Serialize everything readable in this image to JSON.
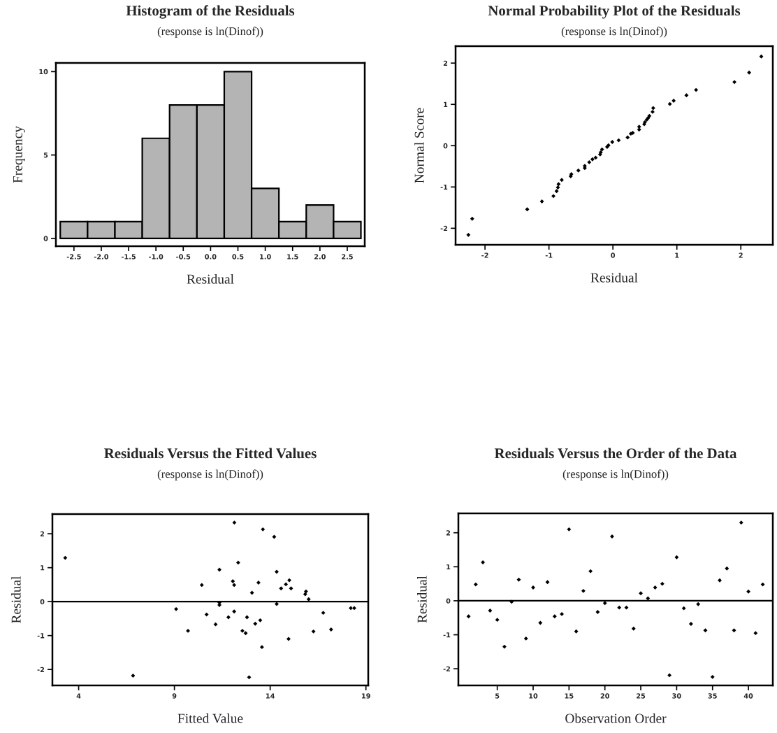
{
  "chart_data": [
    {
      "type": "histogram",
      "title": "Histogram of the Residuals",
      "subtitle": "(response is ln(Dinof))",
      "xlabel": "Residual",
      "ylabel": "Frequency",
      "bins": [
        -2.75,
        -2.25,
        -1.75,
        -1.25,
        -0.75,
        -0.25,
        0.25,
        0.75,
        1.25,
        1.75,
        2.25,
        2.75
      ],
      "values": [
        1,
        1,
        1,
        6,
        8,
        8,
        10,
        3,
        1,
        2,
        1
      ],
      "color": "#b4b4b4",
      "xlim": [
        -2.83,
        2.82
      ],
      "ylim": [
        -0.47,
        10.52
      ],
      "xticks": [
        -2.5,
        {
          "value": -2.0,
          "label": "-2.0"
        },
        -1.5,
        {
          "value": -1.0,
          "label": "-1.0"
        },
        -0.5,
        {
          "value": 0.0,
          "label": "0.0"
        },
        0.5,
        {
          "value": 1.0,
          "label": "1.0"
        },
        1.5,
        {
          "value": 2.0,
          "label": "2.0"
        },
        2.5
      ],
      "yticks": [
        0,
        5,
        10
      ]
    },
    {
      "type": "scatter",
      "title": "Normal Probability Plot of the Residuals",
      "subtitle": "(response is ln(Dinof))",
      "xlabel": "Residual",
      "ylabel": "Normal Score",
      "marker": "diamond",
      "series": [
        {
          "color": "#000000",
          "x": [
            -2.26,
            -2.2,
            -1.34,
            -1.11,
            -0.93,
            -0.88,
            -0.86,
            -0.85,
            -0.8,
            -0.66,
            -0.65,
            -0.54,
            -0.44,
            -0.44,
            -0.37,
            -0.32,
            -0.27,
            -0.2,
            -0.19,
            -0.17,
            -0.09,
            -0.07,
            -0.01,
            0.09,
            0.23,
            0.28,
            0.31,
            0.41,
            0.41,
            0.49,
            0.5,
            0.53,
            0.55,
            0.57,
            0.62,
            0.63,
            0.89,
            0.95,
            1.15,
            1.3,
            1.9,
            2.13,
            2.32
          ],
          "values": [
            -2.16,
            -1.77,
            -1.54,
            -1.35,
            -1.22,
            -1.1,
            -1.01,
            -0.93,
            -0.83,
            -0.74,
            -0.69,
            -0.6,
            -0.54,
            -0.49,
            -0.4,
            -0.33,
            -0.29,
            -0.21,
            -0.16,
            -0.09,
            -0.03,
            0.01,
            0.09,
            0.13,
            0.2,
            0.29,
            0.31,
            0.39,
            0.46,
            0.52,
            0.57,
            0.63,
            0.67,
            0.72,
            0.82,
            0.91,
            1.01,
            1.09,
            1.22,
            1.35,
            1.54,
            1.77,
            2.16
          ]
        }
      ],
      "xlim": [
        -2.46,
        2.5
      ],
      "ylim": [
        -2.4,
        2.41
      ],
      "xticks": [
        -2,
        -1,
        0,
        1,
        2
      ],
      "yticks": [
        -2,
        -1,
        0,
        1,
        2
      ]
    },
    {
      "type": "scatter",
      "title": "Residuals Versus the Fitted Values",
      "subtitle": "(response is ln(Dinof))",
      "xlabel": "Fitted Value",
      "ylabel": "Residual",
      "marker": "diamond",
      "series": [
        {
          "color": "#000000",
          "x": [
            3.3,
            12.13,
            13.62,
            14.21,
            12.33,
            11.35,
            14.34,
            12.05,
            12.12,
            10.43,
            13.39,
            15.0,
            14.82,
            14.57,
            15.09,
            13.05,
            15.87,
            15.83,
            16.01,
            11.35,
            11.35,
            14.34,
            9.09,
            10.68,
            12.12,
            11.82,
            12.79,
            11.15,
            13.22,
            13.48,
            9.71,
            12.55,
            12.72,
            14.96,
            13.57,
            6.84,
            12.9,
            16.26,
            16.77,
            17.18,
            18.21,
            18.39
          ],
          "values": [
            1.29,
            2.33,
            2.13,
            1.91,
            1.15,
            0.94,
            0.88,
            0.6,
            0.49,
            0.49,
            0.56,
            0.63,
            0.51,
            0.39,
            0.39,
            0.26,
            0.3,
            0.22,
            0.07,
            -0.03,
            -0.1,
            -0.07,
            -0.22,
            -0.38,
            -0.29,
            -0.46,
            -0.46,
            -0.67,
            -0.65,
            -0.55,
            -0.86,
            -0.86,
            -0.93,
            -1.1,
            -1.34,
            -2.18,
            -2.23,
            -0.88,
            -0.33,
            -0.82,
            -0.19,
            -0.19
          ]
        }
      ],
      "xlim": [
        2.63,
        19.12
      ],
      "ylim": [
        -2.47,
        2.58
      ],
      "xticks": [
        4,
        9,
        14,
        19
      ],
      "yticks": [
        -2,
        -1,
        0,
        1,
        2
      ],
      "ref_lines": [
        {
          "axis": "y",
          "value": 0,
          "color": "#000000"
        }
      ]
    },
    {
      "type": "scatter",
      "title": "Residuals Versus the Order of the Data",
      "subtitle": "(response is ln(Dinof))",
      "xlabel": "Observation Order",
      "ylabel": "Residual",
      "marker": "diamond",
      "series": [
        {
          "color": "#000000",
          "x": [
            1,
            2,
            3,
            4,
            5,
            6,
            7,
            8,
            9,
            10,
            11,
            12,
            13,
            14,
            15,
            16,
            17,
            18,
            19,
            20,
            21,
            22,
            23,
            24,
            25,
            26,
            27,
            28,
            29,
            30,
            31,
            32,
            33,
            34,
            35,
            36,
            37,
            38,
            39,
            40,
            41,
            42
          ],
          "values": [
            -0.46,
            0.48,
            1.13,
            -0.29,
            -0.56,
            -1.35,
            -0.03,
            0.62,
            -1.11,
            0.39,
            -0.65,
            0.55,
            -0.46,
            -0.39,
            2.1,
            -0.9,
            0.29,
            0.87,
            -0.33,
            -0.07,
            1.89,
            -0.2,
            -0.2,
            -0.82,
            0.22,
            0.07,
            0.39,
            0.5,
            -2.19,
            1.28,
            -0.22,
            -0.68,
            -0.1,
            -0.87,
            -2.24,
            0.6,
            0.95,
            -0.87,
            2.3,
            0.27,
            -0.95,
            0.48
          ]
        }
      ],
      "xlim": [
        -0.42,
        43.4
      ],
      "ylim": [
        -2.49,
        2.57
      ],
      "xticks": [
        5,
        10,
        15,
        20,
        25,
        30,
        35,
        40
      ],
      "yticks": [
        -2,
        -1,
        0,
        1,
        2
      ],
      "ref_lines": [
        {
          "axis": "y",
          "value": 0,
          "color": "#000000"
        }
      ]
    }
  ]
}
